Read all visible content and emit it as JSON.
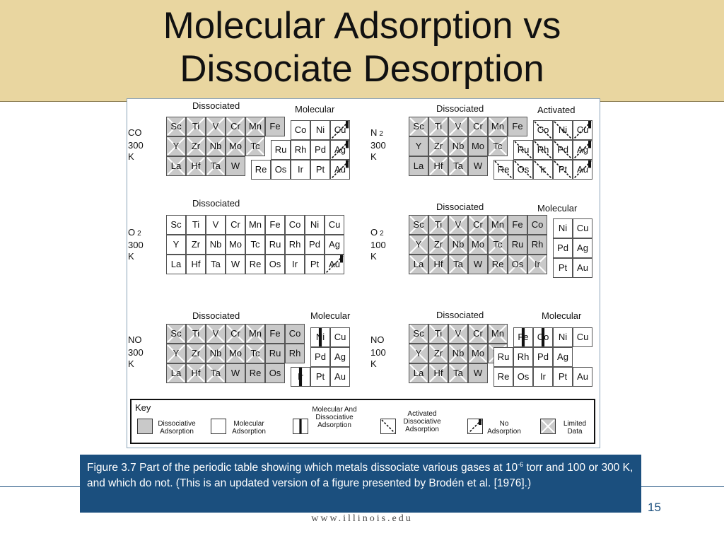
{
  "slide": {
    "title_line1": "Molecular Adsorption vs",
    "title_line2": "Dissociate Desorption",
    "page_number": "15",
    "footer_url": "www.illinois.edu"
  },
  "caption": {
    "text_part1": "Figure 3.7  Part of the periodic table showing which metals dissociate various gases at 10",
    "superscript": "-6",
    "text_part2": " torr and 100 or 300 K, and which do not.  (This is an updated version of a figure presented by Brodén et al. [1976].)"
  },
  "panels": [
    {
      "id": "co-300",
      "gas": "CO",
      "gas_sub": "",
      "temperature": "300",
      "unit": "K",
      "groups": [
        {
          "label": "Dissociated",
          "cells": [
            {
              "el": "Sc",
              "type": "L"
            },
            {
              "el": "Ti",
              "type": "L"
            },
            {
              "el": "V",
              "type": "L"
            },
            {
              "el": "Cr",
              "type": "L"
            },
            {
              "el": "Mn",
              "type": "L"
            },
            {
              "el": "Fe",
              "type": "D"
            },
            {
              "el": "Y",
              "type": "L"
            },
            {
              "el": "Zr",
              "type": "L"
            },
            {
              "el": "Nb",
              "type": "L"
            },
            {
              "el": "Mo",
              "type": "L"
            },
            {
              "el": "Tc",
              "type": "L"
            },
            {
              "el": "La",
              "type": "L"
            },
            {
              "el": "Hf",
              "type": "L"
            },
            {
              "el": "Ta",
              "type": "L"
            },
            {
              "el": "W",
              "type": "D"
            }
          ]
        },
        {
          "label": "Molecular",
          "cells": [
            {
              "el": "Co",
              "type": "M"
            },
            {
              "el": "Ni",
              "type": "M"
            },
            {
              "el": "Cu",
              "type": "N"
            },
            {
              "el": "Ru",
              "type": "M"
            },
            {
              "el": "Rh",
              "type": "M"
            },
            {
              "el": "Pd",
              "type": "M"
            },
            {
              "el": "Ag",
              "type": "N"
            },
            {
              "el": "Re",
              "type": "M"
            },
            {
              "el": "Os",
              "type": "M"
            },
            {
              "el": "Ir",
              "type": "M"
            },
            {
              "el": "Pt",
              "type": "M"
            },
            {
              "el": "Au",
              "type": "N"
            }
          ]
        }
      ]
    },
    {
      "id": "n2-300",
      "gas": "N",
      "gas_sub": "2",
      "temperature": "300",
      "unit": "K",
      "groups": [
        {
          "label": "Dissociated",
          "cells": [
            {
              "el": "Sc",
              "type": "L"
            },
            {
              "el": "Ti",
              "type": "L"
            },
            {
              "el": "V",
              "type": "L"
            },
            {
              "el": "Cr",
              "type": "L"
            },
            {
              "el": "Mn",
              "type": "L"
            },
            {
              "el": "Fe",
              "type": "D"
            },
            {
              "el": "Y",
              "type": "D"
            },
            {
              "el": "Zr",
              "type": "L"
            },
            {
              "el": "Nb",
              "type": "L"
            },
            {
              "el": "Mo",
              "type": "D"
            },
            {
              "el": "Tc",
              "type": "L"
            },
            {
              "el": "La",
              "type": "D"
            },
            {
              "el": "Hf",
              "type": "L"
            },
            {
              "el": "Ta",
              "type": "L"
            },
            {
              "el": "W",
              "type": "D"
            }
          ]
        },
        {
          "label": "Activated",
          "cells": [
            {
              "el": "Co",
              "type": "A"
            },
            {
              "el": "Ni",
              "type": "A"
            },
            {
              "el": "Cu",
              "type": "N"
            },
            {
              "el": "Ru",
              "type": "A"
            },
            {
              "el": "Rh",
              "type": "A"
            },
            {
              "el": "Pd",
              "type": "A"
            },
            {
              "el": "Ag",
              "type": "N"
            },
            {
              "el": "Re",
              "type": "A"
            },
            {
              "el": "Os",
              "type": "A"
            },
            {
              "el": "Ir",
              "type": "A"
            },
            {
              "el": "Pt",
              "type": "A"
            },
            {
              "el": "Au",
              "type": "N"
            }
          ]
        }
      ]
    },
    {
      "id": "o2-300",
      "gas": "O",
      "gas_sub": "2",
      "temperature": "300",
      "unit": "K",
      "groups": [
        {
          "label": "Dissociated",
          "cells": [
            {
              "el": "Sc",
              "type": "M"
            },
            {
              "el": "Ti",
              "type": "M"
            },
            {
              "el": "V",
              "type": "M"
            },
            {
              "el": "Cr",
              "type": "M"
            },
            {
              "el": "Mn",
              "type": "M"
            },
            {
              "el": "Fe",
              "type": "M"
            },
            {
              "el": "Co",
              "type": "M"
            },
            {
              "el": "Ni",
              "type": "M"
            },
            {
              "el": "Cu",
              "type": "M"
            },
            {
              "el": "Y",
              "type": "M"
            },
            {
              "el": "Zr",
              "type": "M"
            },
            {
              "el": "Nb",
              "type": "M"
            },
            {
              "el": "Mo",
              "type": "M"
            },
            {
              "el": "Tc",
              "type": "M"
            },
            {
              "el": "Ru",
              "type": "M"
            },
            {
              "el": "Rh",
              "type": "M"
            },
            {
              "el": "Pd",
              "type": "M"
            },
            {
              "el": "Ag",
              "type": "M"
            },
            {
              "el": "La",
              "type": "M"
            },
            {
              "el": "Hf",
              "type": "M"
            },
            {
              "el": "Ta",
              "type": "M"
            },
            {
              "el": "W",
              "type": "M"
            },
            {
              "el": "Re",
              "type": "M"
            },
            {
              "el": "Os",
              "type": "M"
            },
            {
              "el": "Ir",
              "type": "M"
            },
            {
              "el": "Pt",
              "type": "M"
            },
            {
              "el": "Au",
              "type": "N"
            }
          ]
        }
      ]
    },
    {
      "id": "o2-100",
      "gas": "O",
      "gas_sub": "2",
      "temperature": "100",
      "unit": "K",
      "groups": [
        {
          "label": "Dissociated",
          "cells": [
            {
              "el": "Sc",
              "type": "L"
            },
            {
              "el": "Ti",
              "type": "L"
            },
            {
              "el": "V",
              "type": "L"
            },
            {
              "el": "Cr",
              "type": "L"
            },
            {
              "el": "Mn",
              "type": "L"
            },
            {
              "el": "Fe",
              "type": "D"
            },
            {
              "el": "Co",
              "type": "D"
            },
            {
              "el": "Y",
              "type": "L"
            },
            {
              "el": "Zr",
              "type": "L"
            },
            {
              "el": "Nb",
              "type": "L"
            },
            {
              "el": "Mo",
              "type": "L"
            },
            {
              "el": "Tc",
              "type": "L"
            },
            {
              "el": "Ru",
              "type": "D"
            },
            {
              "el": "Rh",
              "type": "D"
            },
            {
              "el": "La",
              "type": "L"
            },
            {
              "el": "Hf",
              "type": "L"
            },
            {
              "el": "Ta",
              "type": "L"
            },
            {
              "el": "W",
              "type": "D"
            },
            {
              "el": "Re",
              "type": "L"
            },
            {
              "el": "Os",
              "type": "L"
            },
            {
              "el": "Ir",
              "type": "L"
            }
          ]
        },
        {
          "label": "Molecular",
          "cells": [
            {
              "el": "Ni",
              "type": "M"
            },
            {
              "el": "Cu",
              "type": "M"
            },
            {
              "el": "Pd",
              "type": "M"
            },
            {
              "el": "Ag",
              "type": "M"
            },
            {
              "el": "Pt",
              "type": "M"
            },
            {
              "el": "Au",
              "type": "M"
            }
          ]
        }
      ]
    },
    {
      "id": "no-300",
      "gas": "NO",
      "gas_sub": "",
      "temperature": "300",
      "unit": "K",
      "groups": [
        {
          "label": "Dissociated",
          "cells": [
            {
              "el": "Sc",
              "type": "L"
            },
            {
              "el": "Ti",
              "type": "L"
            },
            {
              "el": "V",
              "type": "L"
            },
            {
              "el": "Cr",
              "type": "L"
            },
            {
              "el": "Mn",
              "type": "L"
            },
            {
              "el": "Fe",
              "type": "D"
            },
            {
              "el": "Co",
              "type": "D"
            },
            {
              "el": "Y",
              "type": "L"
            },
            {
              "el": "Zr",
              "type": "L"
            },
            {
              "el": "Nb",
              "type": "L"
            },
            {
              "el": "Mo",
              "type": "L"
            },
            {
              "el": "Tc",
              "type": "L"
            },
            {
              "el": "Ru",
              "type": "D"
            },
            {
              "el": "Rh",
              "type": "D"
            },
            {
              "el": "La",
              "type": "L"
            },
            {
              "el": "Hf",
              "type": "L"
            },
            {
              "el": "Ta",
              "type": "L"
            },
            {
              "el": "W",
              "type": "D"
            },
            {
              "el": "Re",
              "type": "D"
            },
            {
              "el": "Os",
              "type": "D"
            }
          ]
        },
        {
          "label": "Molecular",
          "cells": [
            {
              "el": "Ni",
              "type": "MD"
            },
            {
              "el": "Cu",
              "type": "M"
            },
            {
              "el": "Pd",
              "type": "M"
            },
            {
              "el": "Ag",
              "type": "M"
            },
            {
              "el": "Ir",
              "type": "MD"
            },
            {
              "el": "Pt",
              "type": "M"
            },
            {
              "el": "Au",
              "type": "M"
            }
          ]
        }
      ]
    },
    {
      "id": "no-100",
      "gas": "NO",
      "gas_sub": "",
      "temperature": "100",
      "unit": "K",
      "groups": [
        {
          "label": "Dissociated",
          "cells": [
            {
              "el": "Sc",
              "type": "L"
            },
            {
              "el": "Ti",
              "type": "L"
            },
            {
              "el": "V",
              "type": "L"
            },
            {
              "el": "Cr",
              "type": "L"
            },
            {
              "el": "Mn",
              "type": "L"
            },
            {
              "el": "Y",
              "type": "L"
            },
            {
              "el": "Zr",
              "type": "L"
            },
            {
              "el": "Nb",
              "type": "L"
            },
            {
              "el": "Mo",
              "type": "L"
            },
            {
              "el": "Tc",
              "type": "L"
            },
            {
              "el": "La",
              "type": "L"
            },
            {
              "el": "Hf",
              "type": "L"
            },
            {
              "el": "Ta",
              "type": "L"
            },
            {
              "el": "W",
              "type": "D"
            }
          ]
        },
        {
          "label": "Molecular",
          "cells": [
            {
              "el": "Fe",
              "type": "MD"
            },
            {
              "el": "Co",
              "type": "MD"
            },
            {
              "el": "Ni",
              "type": "M"
            },
            {
              "el": "Cu",
              "type": "M"
            },
            {
              "el": "Ru",
              "type": "M"
            },
            {
              "el": "Rh",
              "type": "M"
            },
            {
              "el": "Pd",
              "type": "M"
            },
            {
              "el": "Ag",
              "type": "M"
            },
            {
              "el": "Re",
              "type": "M"
            },
            {
              "el": "Os",
              "type": "M"
            },
            {
              "el": "Ir",
              "type": "M"
            },
            {
              "el": "Pt",
              "type": "M"
            },
            {
              "el": "Au",
              "type": "M"
            }
          ]
        }
      ]
    }
  ],
  "legend": {
    "title": "Key",
    "items": [
      {
        "type": "D",
        "label": "Dissociative Adsorption"
      },
      {
        "type": "M",
        "label": "Molecular Adsorption"
      },
      {
        "type": "MD",
        "label": "Molecular And Dissociative Adsorption"
      },
      {
        "type": "A",
        "label": "Activated Dissociative Adsorption"
      },
      {
        "type": "N",
        "label": "No Adsorption"
      },
      {
        "type": "L",
        "label": "Limited Data"
      }
    ]
  },
  "colors": {
    "title_band": "#e9d6a0",
    "caption_bg": "#1b4f7e",
    "dissociative_fill": "#c9c9c9"
  }
}
